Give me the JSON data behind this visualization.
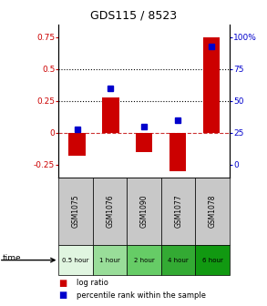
{
  "title": "GDS115 / 8523",
  "samples": [
    "GSM1075",
    "GSM1076",
    "GSM1090",
    "GSM1077",
    "GSM1078"
  ],
  "time_labels": [
    "0.5 hour",
    "1 hour",
    "2 hour",
    "4 hour",
    "6 hour"
  ],
  "time_colors": [
    "#e0f5e0",
    "#99dd99",
    "#66cc66",
    "#33aa33",
    "#119911"
  ],
  "log_ratios": [
    -0.18,
    0.28,
    -0.15,
    -0.3,
    0.75
  ],
  "percentile_ranks_pct": [
    28,
    60,
    30,
    35,
    93
  ],
  "bar_color": "#cc0000",
  "dot_color": "#0000cc",
  "ylim": [
    -0.35,
    0.85
  ],
  "hline_y": [
    0.25,
    0.5
  ],
  "zero_line_y": 0,
  "left_tick_color": "#cc0000",
  "right_tick_color": "#0000cc",
  "legend_log_ratio_label": "log ratio",
  "legend_percentile_label": "percentile rank within the sample",
  "background_sample_row": "#c8c8c8",
  "bar_width": 0.5,
  "left_yticks": [
    -0.25,
    0,
    0.25,
    0.5,
    0.75
  ],
  "left_yticklabels": [
    "-0.25",
    "0",
    "0.25",
    "0.5",
    "0.75"
  ],
  "right_ytick_positions": [
    -0.25,
    0,
    0.25,
    0.5,
    0.75
  ],
  "right_yticklabels": [
    "0",
    "25",
    "50",
    "75",
    "100%"
  ]
}
